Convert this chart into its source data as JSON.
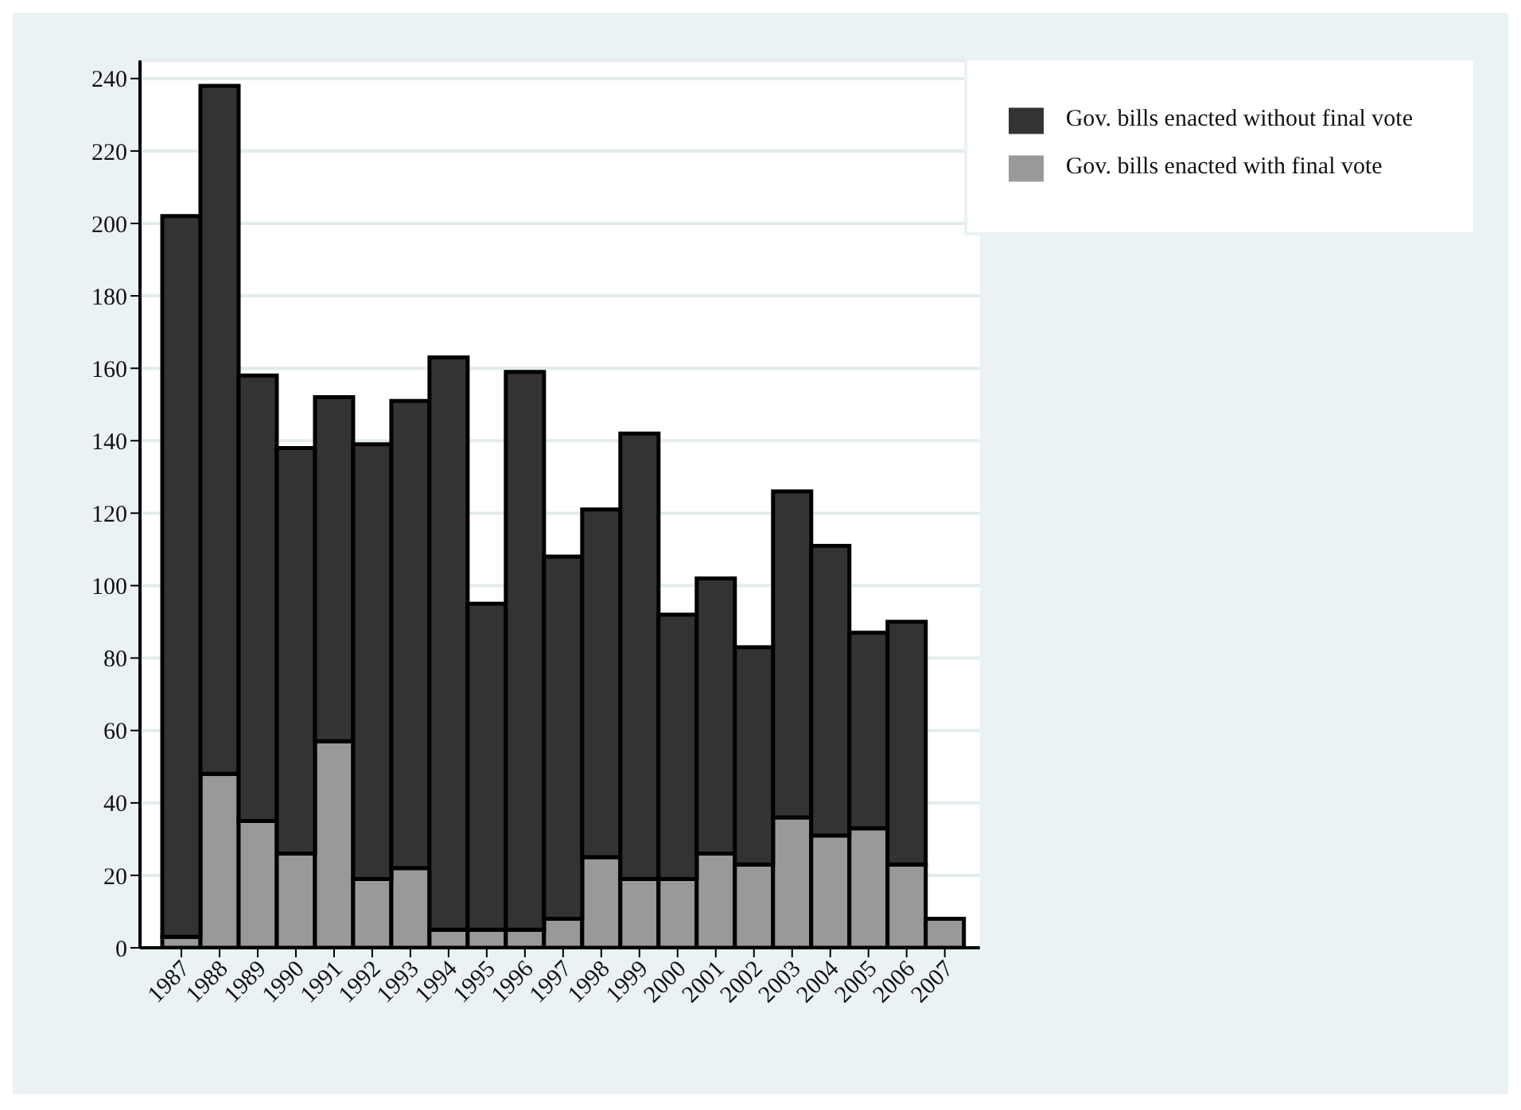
{
  "chart_data": {
    "type": "bar",
    "stacked": true,
    "categories": [
      "1987",
      "1988",
      "1989",
      "1990",
      "1991",
      "1992",
      "1993",
      "1994",
      "1995",
      "1996",
      "1997",
      "1998",
      "1999",
      "2000",
      "2001",
      "2002",
      "2003",
      "2004",
      "2005",
      "2006",
      "2007"
    ],
    "series": [
      {
        "name": "Gov. bills enacted with final vote",
        "color": "#999999",
        "values": [
          3,
          48,
          35,
          26,
          57,
          19,
          22,
          5,
          5,
          5,
          8,
          25,
          19,
          19,
          26,
          23,
          36,
          31,
          33,
          23,
          8
        ]
      },
      {
        "name": "Gov. bills enacted without final vote",
        "color": "#333333",
        "values": [
          199,
          190,
          123,
          112,
          95,
          120,
          129,
          158,
          90,
          154,
          100,
          96,
          123,
          73,
          76,
          60,
          90,
          80,
          54,
          67,
          null
        ]
      }
    ],
    "ylim": [
      0,
      245
    ],
    "yticks": [
      0,
      20,
      40,
      60,
      80,
      100,
      120,
      140,
      160,
      180,
      200,
      220,
      240
    ],
    "grid": "y",
    "legend": "top right"
  }
}
